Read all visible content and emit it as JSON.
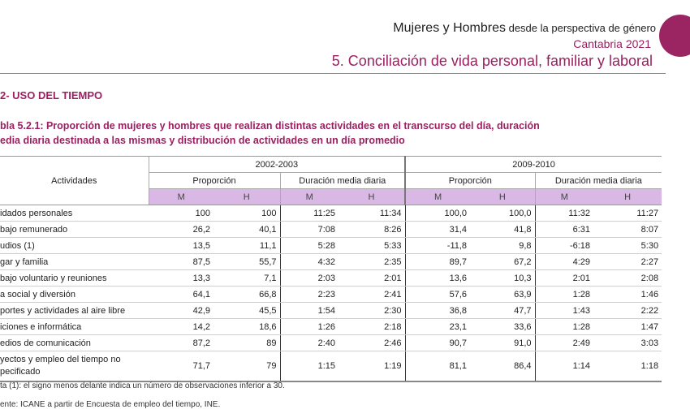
{
  "header": {
    "title_main": "Mujeres y Hombres",
    "title_sub": " desde la perspectiva de género",
    "region_year": "Cantabria 2021",
    "chapter": "5. Conciliación de vida personal, familiar y laboral"
  },
  "section_title": "2- USO DEL TIEMPO",
  "table_caption_line1": "bla 5.2.1: Proporción de mujeres y hombres que realizan distintas actividades en el transcurso del día, duración",
  "table_caption_line2": "edia diaria destinada a las mismas y distribución de actividades en un día promedio",
  "table": {
    "activities_header": "Actividades",
    "period1": "2002-2003",
    "period2": "2009-2010",
    "proportion_label": "Proporción",
    "duration_label": "Duración media diaria",
    "m_label": "M",
    "h_label": "H",
    "rows": [
      {
        "activity": "idados personales",
        "p1m": "100",
        "p1h": "100",
        "d1m": "11:25",
        "d1h": "11:34",
        "p2m": "100,0",
        "p2h": "100,0",
        "d2m": "11:32",
        "d2h": "11:27"
      },
      {
        "activity": "bajo remunerado",
        "p1m": "26,2",
        "p1h": "40,1",
        "d1m": "7:08",
        "d1h": "8:26",
        "p2m": "31,4",
        "p2h": "41,8",
        "d2m": "6:31",
        "d2h": "8:07"
      },
      {
        "activity": "udios (1)",
        "p1m": "13,5",
        "p1h": "11,1",
        "d1m": "5:28",
        "d1h": "5:33",
        "p2m": "-11,8",
        "p2h": "9,8",
        "d2m": "-6:18",
        "d2h": "5:30"
      },
      {
        "activity": "gar y familia",
        "p1m": "87,5",
        "p1h": "55,7",
        "d1m": "4:32",
        "d1h": "2:35",
        "p2m": "89,7",
        "p2h": "67,2",
        "d2m": "4:29",
        "d2h": "2:27"
      },
      {
        "activity": "bajo voluntario y reuniones",
        "p1m": "13,3",
        "p1h": "7,1",
        "d1m": "2:03",
        "d1h": "2:01",
        "p2m": "13,6",
        "p2h": "10,3",
        "d2m": "2:01",
        "d2h": "2:08"
      },
      {
        "activity": "a social y diversión",
        "p1m": "64,1",
        "p1h": "66,8",
        "d1m": "2:23",
        "d1h": "2:41",
        "p2m": "57,6",
        "p2h": "63,9",
        "d2m": "1:28",
        "d2h": "1:46"
      },
      {
        "activity": "portes y actividades al aire libre",
        "p1m": "42,9",
        "p1h": "45,5",
        "d1m": "1:54",
        "d1h": "2:30",
        "p2m": "36,8",
        "p2h": "47,7",
        "d2m": "1:43",
        "d2h": "2:22"
      },
      {
        "activity": "iciones e informática",
        "p1m": "14,2",
        "p1h": "18,6",
        "d1m": "1:26",
        "d1h": "2:18",
        "p2m": "23,1",
        "p2h": "33,6",
        "d2m": "1:28",
        "d2h": "1:47"
      },
      {
        "activity": "edios de comunicación",
        "p1m": "87,2",
        "p1h": "89",
        "d1m": "2:40",
        "d1h": "2:46",
        "p2m": "90,7",
        "p2h": "91,0",
        "d2m": "2:49",
        "d2h": "3:03"
      },
      {
        "activity_line1": "yectos y empleo del tiempo no",
        "activity_line2": "pecificado",
        "p1m": "71,7",
        "p1h": "79",
        "d1m": "1:15",
        "d1h": "1:19",
        "p2m": "81,1",
        "p2h": "86,4",
        "d2m": "1:14",
        "d2h": "1:18"
      }
    ]
  },
  "note": "ta (1): el signo menos delante  indica un número de observaciones inferior a 30.",
  "source": "ente: ICANE a partir de Encuesta de empleo del tiempo, INE."
}
